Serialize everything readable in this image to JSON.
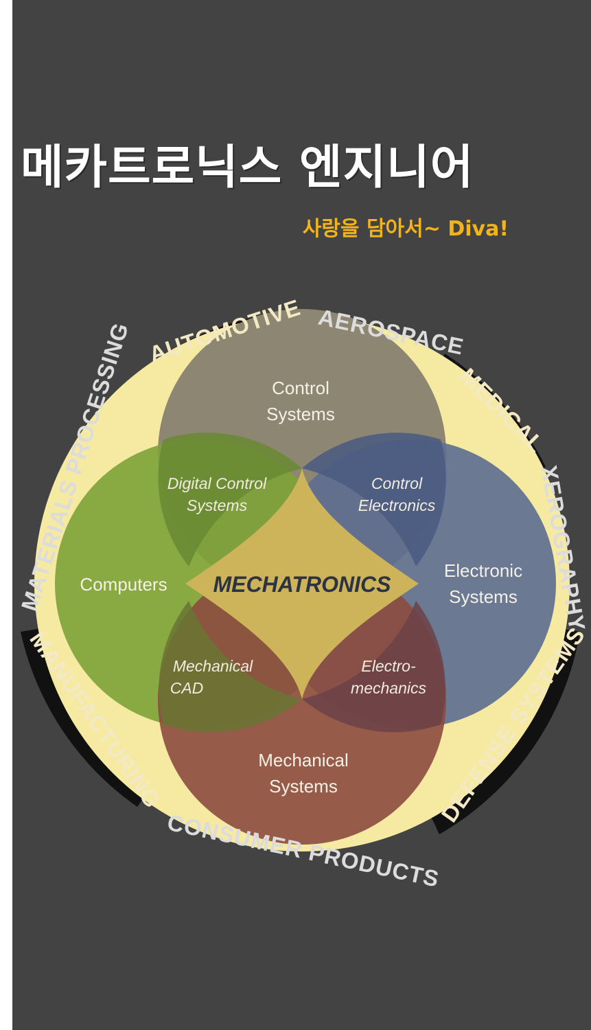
{
  "header": {
    "title": "메카트로닉스 엔지니어",
    "subtitle": "사랑을 담아서~ Diva!"
  },
  "diagram": {
    "center": "MECHATRONICS",
    "circles": {
      "control": [
        "Control",
        "Systems"
      ],
      "computers": "Computers",
      "electronic": [
        "Electronic",
        "Systems"
      ],
      "mechanical": [
        "Mechanical",
        "Systems"
      ]
    },
    "overlaps": {
      "digital_control": [
        "Digital Control",
        "Systems"
      ],
      "control_electronics": [
        "Control",
        "Electronics"
      ],
      "mechanical_cad": [
        "Mechanical",
        "CAD"
      ],
      "electromechanics": [
        "Electro-",
        "mechanics"
      ]
    },
    "ring": {
      "automotive": "AUTOMOTIVE",
      "aerospace": "AEROSPACE",
      "medical": "MEDICAL",
      "xerography": "XEROGRAPHY",
      "defense_systems": "DEFENSE SYSTEMS",
      "consumer_products": "CONSUMER PRODUCTS",
      "manufacturing": "MANUFACTURING",
      "materials_processing": "MATERIALS PROCESSING"
    },
    "colors": {
      "background": "#434343",
      "ring_fill": "#f6eaa3",
      "control": "#8d8672",
      "computers": "#7fa33a",
      "electronic": "#5e6f90",
      "mechanical": "#8c4b3f",
      "center": "#cdb35a",
      "subtitle": "#f3b41b"
    }
  }
}
